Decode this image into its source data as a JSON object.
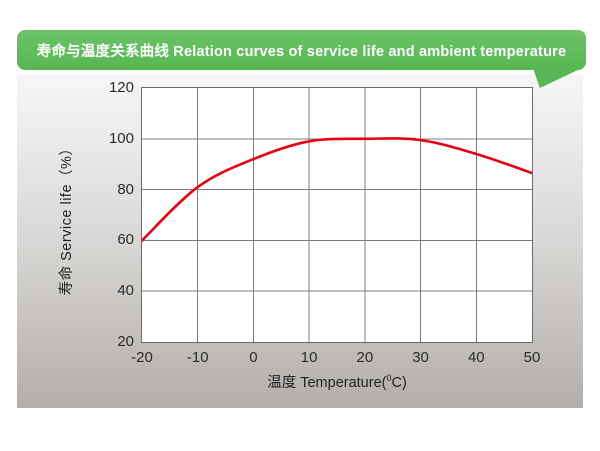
{
  "banner": {
    "text": "寿命与温度关系曲线 Relation curves of service life and ambient temperature",
    "color": "#58b754",
    "text_color": "#ffffff"
  },
  "labels": {
    "xlabel_pre": "温度 Temperature(",
    "xlabel_sup": "0",
    "xlabel_post": "C)"
  },
  "chart_data": {
    "type": "line",
    "title": "寿命与温度关系曲线 Relation curves of service life and ambient temperature",
    "x": [
      -20,
      -10,
      0,
      10,
      20,
      30,
      40,
      50
    ],
    "y": [
      60,
      81,
      92,
      99,
      100,
      99.5,
      94,
      86.5
    ],
    "series": [
      {
        "name": "service life",
        "values": [
          60,
          81,
          92,
          99,
          100,
          99.5,
          94,
          86.5
        ]
      }
    ],
    "xlabel": "温度 Temperature(°C)",
    "ylabel": "寿命 Service life（%）",
    "xlim": [
      -20,
      50
    ],
    "ylim": [
      20,
      120
    ],
    "x_ticks": [
      -20,
      -10,
      0,
      10,
      20,
      30,
      40,
      50
    ],
    "y_ticks": [
      20,
      40,
      60,
      80,
      100,
      120
    ],
    "grid": true,
    "legend_position": "none",
    "line_color": "#e60012",
    "grid_color": "#7c7c7c",
    "plot_background": "#ffffff"
  }
}
